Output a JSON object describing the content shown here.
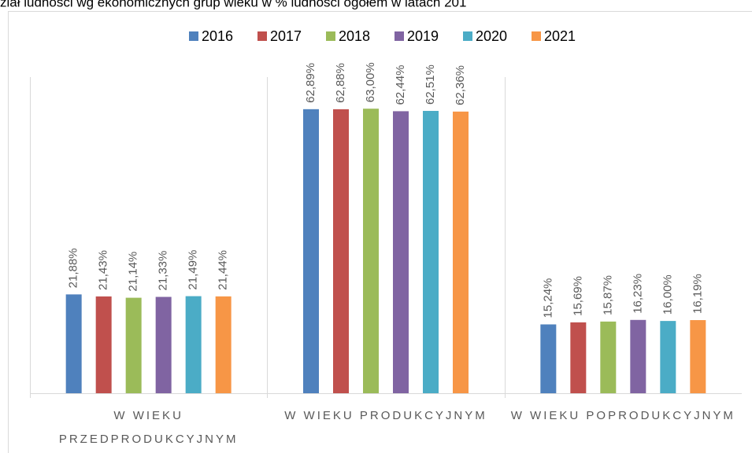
{
  "chart_data": {
    "type": "bar",
    "title": "ział ludności wg ekonomicznych grup wieku w % ludności ogółem w latach 201",
    "categories": [
      "W WIEKU PRZEDPRODUKCYJNYM",
      "W WIEKU PRODUKCYJNYM",
      "W WIEKU POPRODUKCYJNYM"
    ],
    "ylim": [
      0,
      70
    ],
    "legend": "top",
    "series": [
      {
        "name": "2016",
        "color": "#4f81bd",
        "values": [
          21.88,
          62.89,
          15.24
        ],
        "value_labels": [
          "21,88%",
          "62,89%",
          "15,24%"
        ]
      },
      {
        "name": "2017",
        "color": "#c0504d",
        "values": [
          21.43,
          62.88,
          15.69
        ],
        "value_labels": [
          "21,43%",
          "62,88%",
          "15,69%"
        ]
      },
      {
        "name": "2018",
        "color": "#9bbb59",
        "values": [
          21.14,
          63.0,
          15.87
        ],
        "value_labels": [
          "21,14%",
          "63,00%",
          "15,87%"
        ]
      },
      {
        "name": "2019",
        "color": "#8064a2",
        "values": [
          21.33,
          62.44,
          16.23
        ],
        "value_labels": [
          "21,33%",
          "62,44%",
          "16,23%"
        ]
      },
      {
        "name": "2020",
        "color": "#4bacc6",
        "values": [
          21.49,
          62.51,
          16.0
        ],
        "value_labels": [
          "21,49%",
          "62,51%",
          "16,00%"
        ]
      },
      {
        "name": "2021",
        "color": "#f79646",
        "values": [
          21.44,
          62.36,
          16.19
        ],
        "value_labels": [
          "21,44%",
          "62,36%",
          "16,19%"
        ]
      }
    ]
  }
}
